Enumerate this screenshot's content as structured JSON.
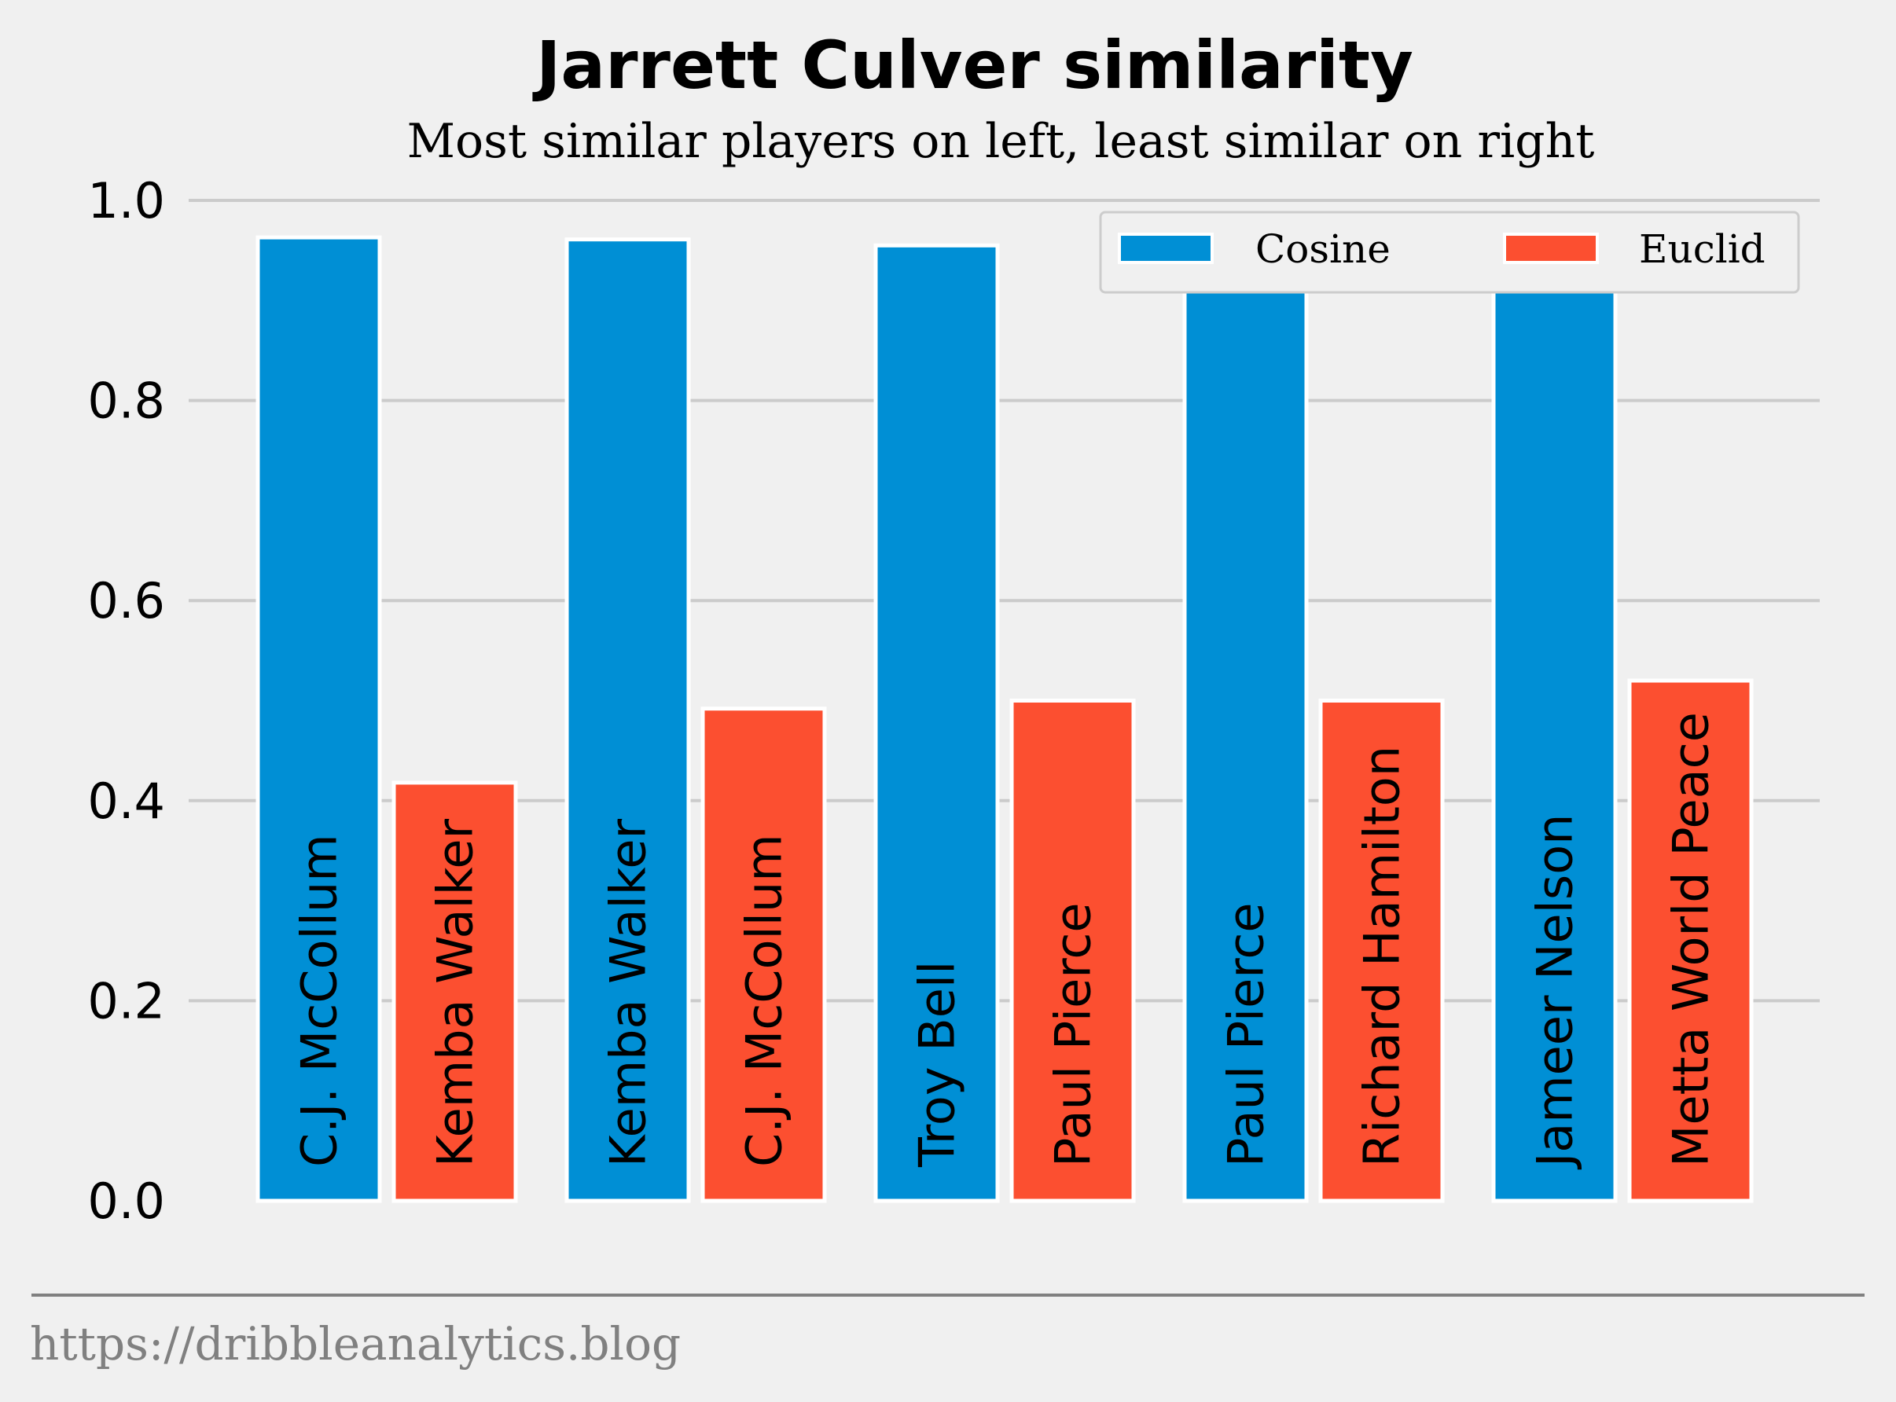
{
  "chart_data": {
    "type": "bar",
    "title": "Jarrett Culver similarity",
    "subtitle": "Most similar players on left, least similar on right",
    "xlabel": "",
    "ylabel": "",
    "ylim": [
      0,
      1.0
    ],
    "yticks": [
      "0.0",
      "0.2",
      "0.4",
      "0.6",
      "0.8",
      "1.0"
    ],
    "grid": true,
    "legend_position": "top-right",
    "series": [
      {
        "name": "Cosine",
        "color": "#008fd5",
        "values": [
          0.963,
          0.961,
          0.955,
          0.946,
          0.945
        ],
        "labels": [
          "C.J. McCollum",
          "Kemba Walker",
          "Troy Bell",
          "Paul Pierce",
          "Jameer Nelson"
        ]
      },
      {
        "name": "Euclid",
        "color": "#fc4f30",
        "values": [
          0.418,
          0.492,
          0.5,
          0.5,
          0.52
        ],
        "labels": [
          "Kemba Walker",
          "C.J. McCollum",
          "Paul Pierce",
          "Richard Hamilton",
          "Metta World Peace"
        ]
      }
    ]
  },
  "footer": "https://dribbleanalytics.blog"
}
